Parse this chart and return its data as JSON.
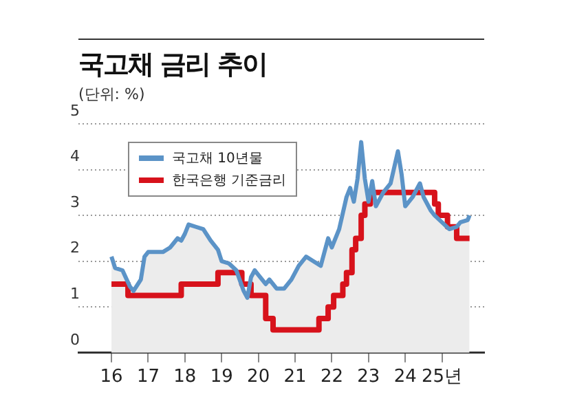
{
  "chart_data": {
    "type": "line",
    "title": "국고채 금리 추이",
    "subtitle": "(단위: %)",
    "xlim": [
      15.1,
      26.15
    ],
    "xticks": [
      16,
      17,
      18,
      19,
      20,
      21,
      22,
      23,
      24,
      {
        "value": 25,
        "label": "25년"
      }
    ],
    "ylim": [
      0,
      5
    ],
    "yticks": [
      0,
      1,
      2,
      3,
      4,
      5
    ],
    "grid": "y",
    "legend": "top left",
    "series": [
      {
        "name": "국고채 10년물",
        "type": "area",
        "color": "#5b93c7",
        "x": [
          16.0,
          16.1,
          16.3,
          16.5,
          16.6,
          16.8,
          16.9,
          17.0,
          17.2,
          17.4,
          17.6,
          17.8,
          17.9,
          18.0,
          18.1,
          18.3,
          18.5,
          18.7,
          18.9,
          19.0,
          19.2,
          19.4,
          19.6,
          19.7,
          19.8,
          19.9,
          20.0,
          20.2,
          20.3,
          20.5,
          20.7,
          20.9,
          21.1,
          21.3,
          21.5,
          21.7,
          21.9,
          22.0,
          22.2,
          22.4,
          22.5,
          22.6,
          22.7,
          22.8,
          22.9,
          23.0,
          23.1,
          23.2,
          23.4,
          23.6,
          23.8,
          23.9,
          24.0,
          24.2,
          24.4,
          24.5,
          24.7,
          24.8,
          25.0,
          25.2,
          25.4,
          25.5,
          25.7,
          25.75
        ],
        "values": [
          2.1,
          1.85,
          1.8,
          1.45,
          1.35,
          1.6,
          2.1,
          2.2,
          2.2,
          2.2,
          2.3,
          2.5,
          2.45,
          2.6,
          2.8,
          2.75,
          2.7,
          2.45,
          2.25,
          2.0,
          1.95,
          1.8,
          1.35,
          1.2,
          1.65,
          1.8,
          1.7,
          1.5,
          1.6,
          1.4,
          1.4,
          1.6,
          1.9,
          2.1,
          2.0,
          1.9,
          2.5,
          2.3,
          2.7,
          3.4,
          3.6,
          3.3,
          3.8,
          4.6,
          3.8,
          3.3,
          3.75,
          3.2,
          3.5,
          3.7,
          4.4,
          3.9,
          3.2,
          3.4,
          3.7,
          3.4,
          3.1,
          3.0,
          2.85,
          2.7,
          2.75,
          2.85,
          2.9,
          3.0
        ]
      },
      {
        "name": "한국은행 기준금리",
        "type": "step",
        "color": "#d7121b",
        "x": [
          16.0,
          16.45,
          17.9,
          18.9,
          19.55,
          19.8,
          20.2,
          20.4,
          21.65,
          21.9,
          22.05,
          22.3,
          22.4,
          22.55,
          22.65,
          22.8,
          22.9,
          23.05,
          24.8,
          24.9,
          25.15,
          25.4,
          25.75
        ],
        "values": [
          1.5,
          1.25,
          1.5,
          1.75,
          1.5,
          1.25,
          0.75,
          0.5,
          0.75,
          1.0,
          1.25,
          1.5,
          1.75,
          2.25,
          2.5,
          3.0,
          3.25,
          3.5,
          3.25,
          3.0,
          2.75,
          2.5,
          2.5
        ]
      }
    ]
  }
}
